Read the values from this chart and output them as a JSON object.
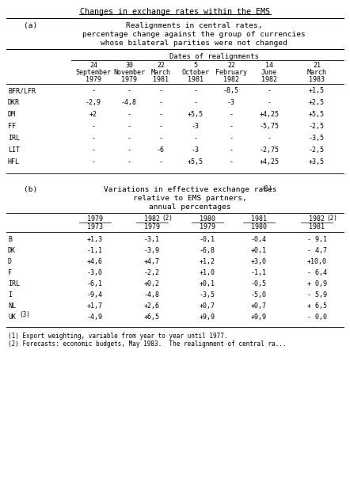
{
  "title": "Changes in exchange rates within the EMS",
  "section_a_label": "(a)",
  "section_a_title1": "Realignments in central rates,",
  "section_a_title2": "percentage change against the group of currencies",
  "section_a_title3": "whose bilateral parities were not changed",
  "dates_header": "Dates of realignments",
  "col_headers_a": [
    [
      "24",
      "September",
      "1979"
    ],
    [
      "30",
      "November",
      "1979"
    ],
    [
      "22",
      "March",
      "1981"
    ],
    [
      "5",
      "October",
      "1981"
    ],
    [
      "22",
      "February",
      "1982"
    ],
    [
      "14",
      "June",
      "1982"
    ],
    [
      "21",
      "March",
      "1983"
    ]
  ],
  "row_labels_a": [
    "BFR/LFR",
    "DKR",
    "DM",
    "FF",
    "IRL",
    "LIT",
    "HFL"
  ],
  "table_a_data": [
    [
      "-",
      "-",
      "-",
      "-",
      "-8,5",
      "-",
      "+1,5"
    ],
    [
      "-2,9",
      "-4,8",
      "-",
      "-",
      "-3",
      "-",
      "+2,5"
    ],
    [
      "+2",
      "-",
      "-",
      "+5,5",
      "-",
      "+4,25",
      "+5,5"
    ],
    [
      "-",
      "-",
      "-",
      "-3",
      "-",
      "-5,75",
      "-2,5"
    ],
    [
      "-",
      "-",
      "-",
      "-",
      "-",
      "-",
      "-3,5"
    ],
    [
      "-",
      "-",
      "-6",
      "-3",
      "-",
      "-2,75",
      "-2,5"
    ],
    [
      "-",
      "-",
      "-",
      "+5,5",
      "-",
      "+4,25",
      "+3,5"
    ]
  ],
  "section_b_label": "(b)",
  "section_b_title1": "Variations in effective exchange rates",
  "section_b_title1_sup": "(1)",
  "section_b_title2": "relative to EMS partners,",
  "section_b_title3": "annual percentages",
  "col_headers_b_top": [
    "1979",
    "1982",
    "1980",
    "1981",
    "1982"
  ],
  "col_headers_b_bot": [
    "1973",
    "1979",
    "1979",
    "1980",
    "1981"
  ],
  "col_headers_b_sup": [
    null,
    "(2)",
    null,
    null,
    "(2)"
  ],
  "row_labels_b": [
    "B",
    "DK",
    "D",
    "F",
    "IRL",
    "I",
    "NL",
    "UK"
  ],
  "uk_superscript": "(3)",
  "table_b_data": [
    [
      "+1,3",
      "-3,1",
      "-0,1",
      "-0,4",
      "- 9,1"
    ],
    [
      "-1,1",
      "-3,9",
      "-6,8",
      "+0,1",
      "- 4,7"
    ],
    [
      "+4,6",
      "+4,7",
      "+1,2",
      "+3,0",
      "+10,0"
    ],
    [
      "-3,0",
      "-2,2",
      "+1,0",
      "-1,1",
      "- 6,4"
    ],
    [
      "-6,1",
      "+0,2",
      "+0,1",
      "-0,5",
      "+ 0,9"
    ],
    [
      "-9,4",
      "-4,8",
      "-3,5",
      "-5,0",
      "- 5,9"
    ],
    [
      "+1,7",
      "+2,6",
      "+0,7",
      "+0,7",
      "+ 6,5"
    ],
    [
      "-4,9",
      "+6,5",
      "+9,9",
      "+9,9",
      "- 0,0"
    ]
  ],
  "footnote1": "(1) Export weighting, variable from year to year until 1977.",
  "footnote2": "(2) Forecasts: economic budgets, May 1983.  The realignment of central ra...",
  "bg_color": "#ffffff"
}
